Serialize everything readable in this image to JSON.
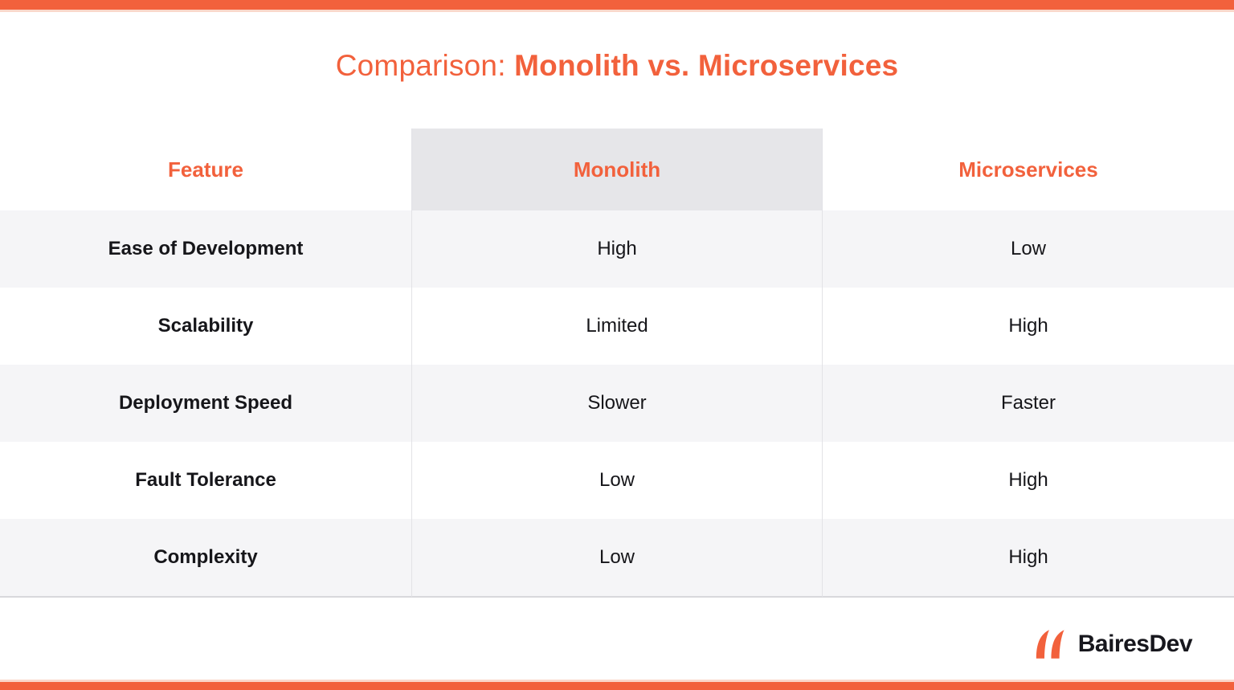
{
  "title": {
    "prefix": "Comparison: ",
    "emphasis": "Monolith vs. Microservices"
  },
  "chart_data": {
    "type": "table",
    "title": "Comparison: Monolith vs. Microservices",
    "columns": [
      "Feature",
      "Monolith",
      "Microservices"
    ],
    "highlighted_column": "Monolith",
    "rows": [
      [
        "Ease of Development",
        "High",
        "Low"
      ],
      [
        "Scalability",
        "Limited",
        "High"
      ],
      [
        "Deployment Speed",
        "Slower",
        "Faster"
      ],
      [
        "Fault Tolerance",
        "Low",
        "High"
      ],
      [
        "Complexity",
        "Low",
        "High"
      ]
    ]
  },
  "footer": {
    "brand": "BairesDev",
    "logo_icon": "bairesdev-double-petal-icon"
  },
  "colors": {
    "accent_orange": "#F2613C",
    "monolith_header_bg": "#E6E6E9",
    "row_alt_bg": "#F5F5F7",
    "column_divider": "#E2E2E6",
    "table_bottom_border": "#D8D8DC",
    "text_dark": "#16161A"
  }
}
